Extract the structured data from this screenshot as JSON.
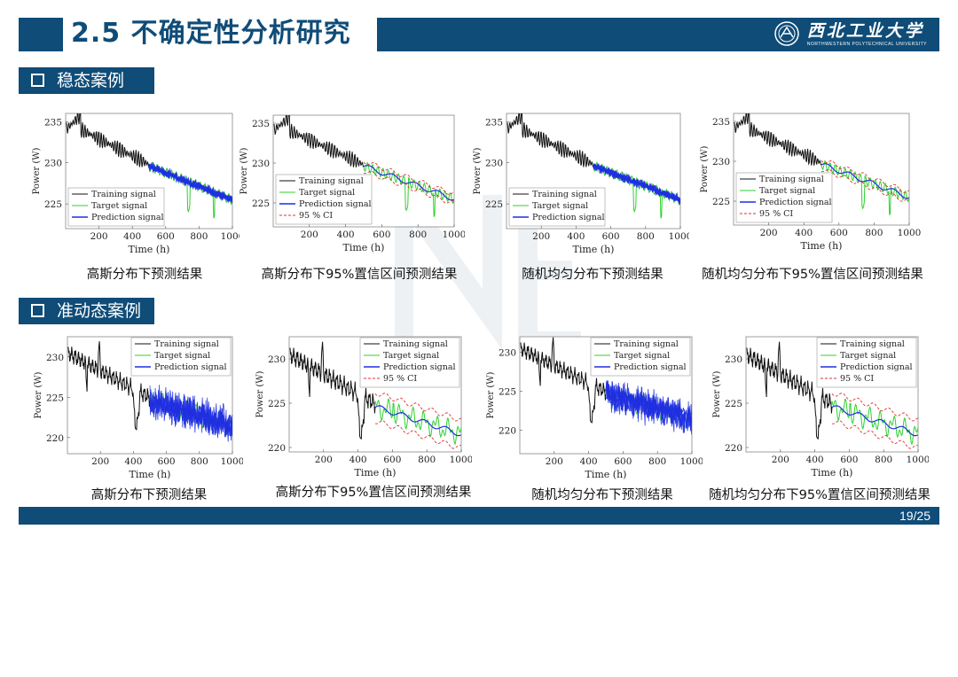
{
  "header": {
    "title": "2.5   不确定性分析研究",
    "logo_name": "西北工业大学",
    "logo_sub": "NORTHWESTERN POLYTECHNICAL UNIVERSITY"
  },
  "sections": [
    {
      "label": "稳态案例"
    },
    {
      "label": "准动态案例"
    }
  ],
  "captions": [
    "高斯分布下预测结果",
    "高斯分布下95%置信区间预测结果",
    "随机均匀分布下预测结果",
    "随机均匀分布下95%置信区间预测结果",
    "高斯分布下预测结果",
    "高斯分布下95%置信区间预测结果",
    "随机均匀分布下预测结果",
    "随机均匀分布下95%置信区间预测结果"
  ],
  "footer": {
    "page": "19/25"
  },
  "colors": {
    "brand": "#0f4c78",
    "training": "#111111",
    "target": "#2fd12f",
    "prediction": "#1f2fe0",
    "ci": "#e03030"
  },
  "chart_data": [
    {
      "type": "line",
      "case": "steady",
      "xlabel": "Time (h)",
      "ylabel": "Power (W)",
      "xlim": [
        0,
        1000
      ],
      "ylim": [
        222,
        236
      ],
      "xticks": [
        200,
        400,
        600,
        800,
        1000
      ],
      "yticks": [
        225,
        230,
        235
      ],
      "legend": [
        "Training signal",
        "Target signal",
        "Prediction signal"
      ],
      "prediction_style": "band"
    },
    {
      "type": "line",
      "case": "steady",
      "xlabel": "Time (h)",
      "ylabel": "Power (W)",
      "xlim": [
        0,
        1000
      ],
      "ylim": [
        222,
        236
      ],
      "xticks": [
        200,
        400,
        600,
        800,
        1000
      ],
      "yticks": [
        225,
        230,
        235
      ],
      "legend": [
        "Training signal",
        "Target signal",
        "Prediction signal",
        "95 % CI"
      ],
      "prediction_style": "line"
    },
    {
      "type": "line",
      "case": "steady",
      "xlabel": "Time (h)",
      "ylabel": "Power (W)",
      "xlim": [
        0,
        1000
      ],
      "ylim": [
        222,
        236
      ],
      "xticks": [
        200,
        400,
        600,
        800,
        1000
      ],
      "yticks": [
        225,
        230,
        235
      ],
      "legend": [
        "Training signal",
        "Target signal",
        "Prediction signal"
      ],
      "prediction_style": "band"
    },
    {
      "type": "line",
      "case": "steady",
      "xlabel": "Time (h)",
      "ylabel": "Power (W)",
      "xlim": [
        0,
        1000
      ],
      "ylim": [
        222,
        236
      ],
      "xticks": [
        200,
        400,
        600,
        800,
        1000
      ],
      "yticks": [
        225,
        230,
        235
      ],
      "legend": [
        "Training signal",
        "Target signal",
        "Prediction signal",
        "95 % CI"
      ],
      "prediction_style": "line"
    },
    {
      "type": "line",
      "case": "quasi-dynamic",
      "xlabel": "Time (h)",
      "ylabel": "Power (W)",
      "xlim": [
        0,
        1000
      ],
      "ylim": [
        218,
        232.5
      ],
      "xticks": [
        200,
        400,
        600,
        800,
        1000
      ],
      "yticks": [
        220,
        225,
        230
      ],
      "legend": [
        "Training signal",
        "Target signal",
        "Prediction signal"
      ],
      "prediction_style": "noisy"
    },
    {
      "type": "line",
      "case": "quasi-dynamic",
      "xlabel": "Time (h)",
      "ylabel": "Power (W)",
      "xlim": [
        0,
        1000
      ],
      "ylim": [
        219.5,
        232.5
      ],
      "xticks": [
        200,
        400,
        600,
        800,
        1000
      ],
      "yticks": [
        220,
        225,
        230
      ],
      "legend": [
        "Training signal",
        "Target signal",
        "Prediction signal",
        "95 % CI"
      ],
      "prediction_style": "line"
    },
    {
      "type": "line",
      "case": "quasi-dynamic",
      "xlabel": "Time (h)",
      "ylabel": "Power (W)",
      "xlim": [
        0,
        1000
      ],
      "ylim": [
        217,
        232
      ],
      "xticks": [
        200,
        400,
        600,
        800,
        1000
      ],
      "yticks": [
        220,
        225,
        230
      ],
      "legend": [
        "Training signal",
        "Target signal",
        "Prediction signal"
      ],
      "prediction_style": "noisy"
    },
    {
      "type": "line",
      "case": "quasi-dynamic",
      "xlabel": "Time (h)",
      "ylabel": "Power (W)",
      "xlim": [
        0,
        1000
      ],
      "ylim": [
        219.5,
        232.5
      ],
      "xticks": [
        200,
        400,
        600,
        800,
        1000
      ],
      "yticks": [
        220,
        225,
        230
      ],
      "legend": [
        "Training signal",
        "Target signal",
        "Prediction signal",
        "95 % CI"
      ],
      "prediction_style": "line"
    }
  ]
}
